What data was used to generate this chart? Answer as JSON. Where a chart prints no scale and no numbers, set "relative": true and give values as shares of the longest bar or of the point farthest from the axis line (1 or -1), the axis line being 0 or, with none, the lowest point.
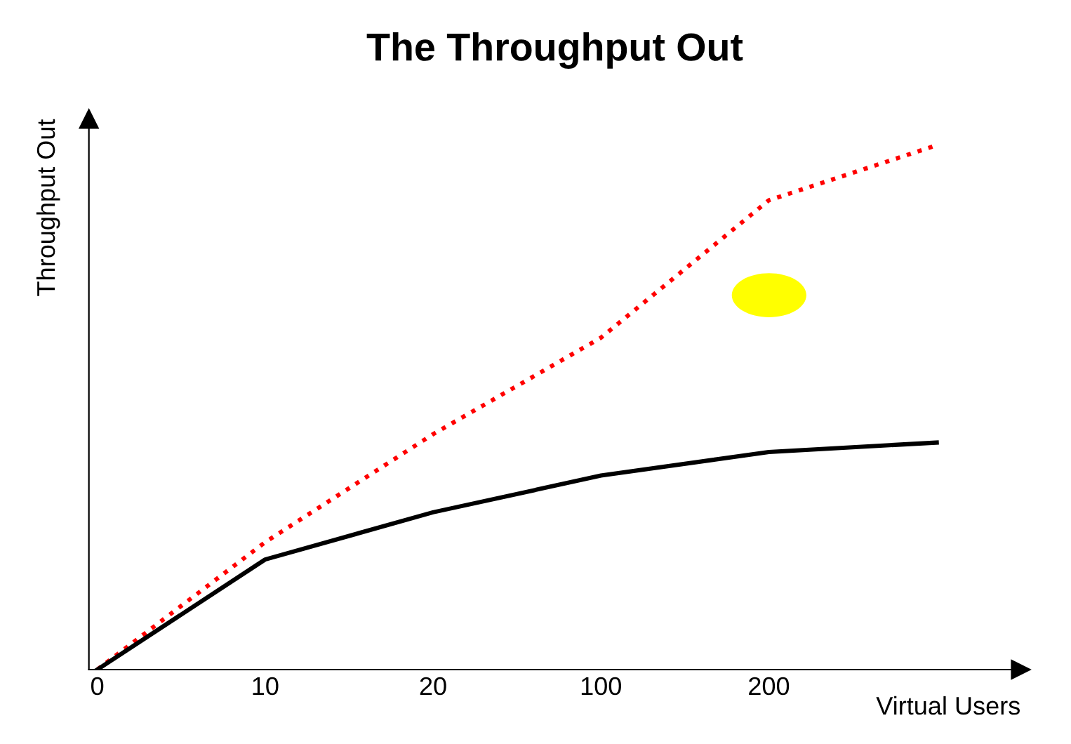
{
  "chart_data": {
    "type": "line",
    "title": "The Throughput Out",
    "xlabel": "Virtual Users",
    "ylabel": "Throughput Out",
    "relative": true,
    "categories": [
      "0",
      "10",
      "20",
      "100",
      "200",
      null
    ],
    "series": [
      {
        "color": "#ff0000",
        "line_style": "dotted",
        "values": [
          0,
          0.243,
          0.449,
          0.633,
          0.895,
          1
        ]
      },
      {
        "color": "#000000",
        "line_style": "solid",
        "values": [
          0,
          0.21,
          0.3,
          0.37,
          0.415,
          0.433
        ]
      }
    ],
    "legend": false,
    "grid": false,
    "marker": "none"
  }
}
